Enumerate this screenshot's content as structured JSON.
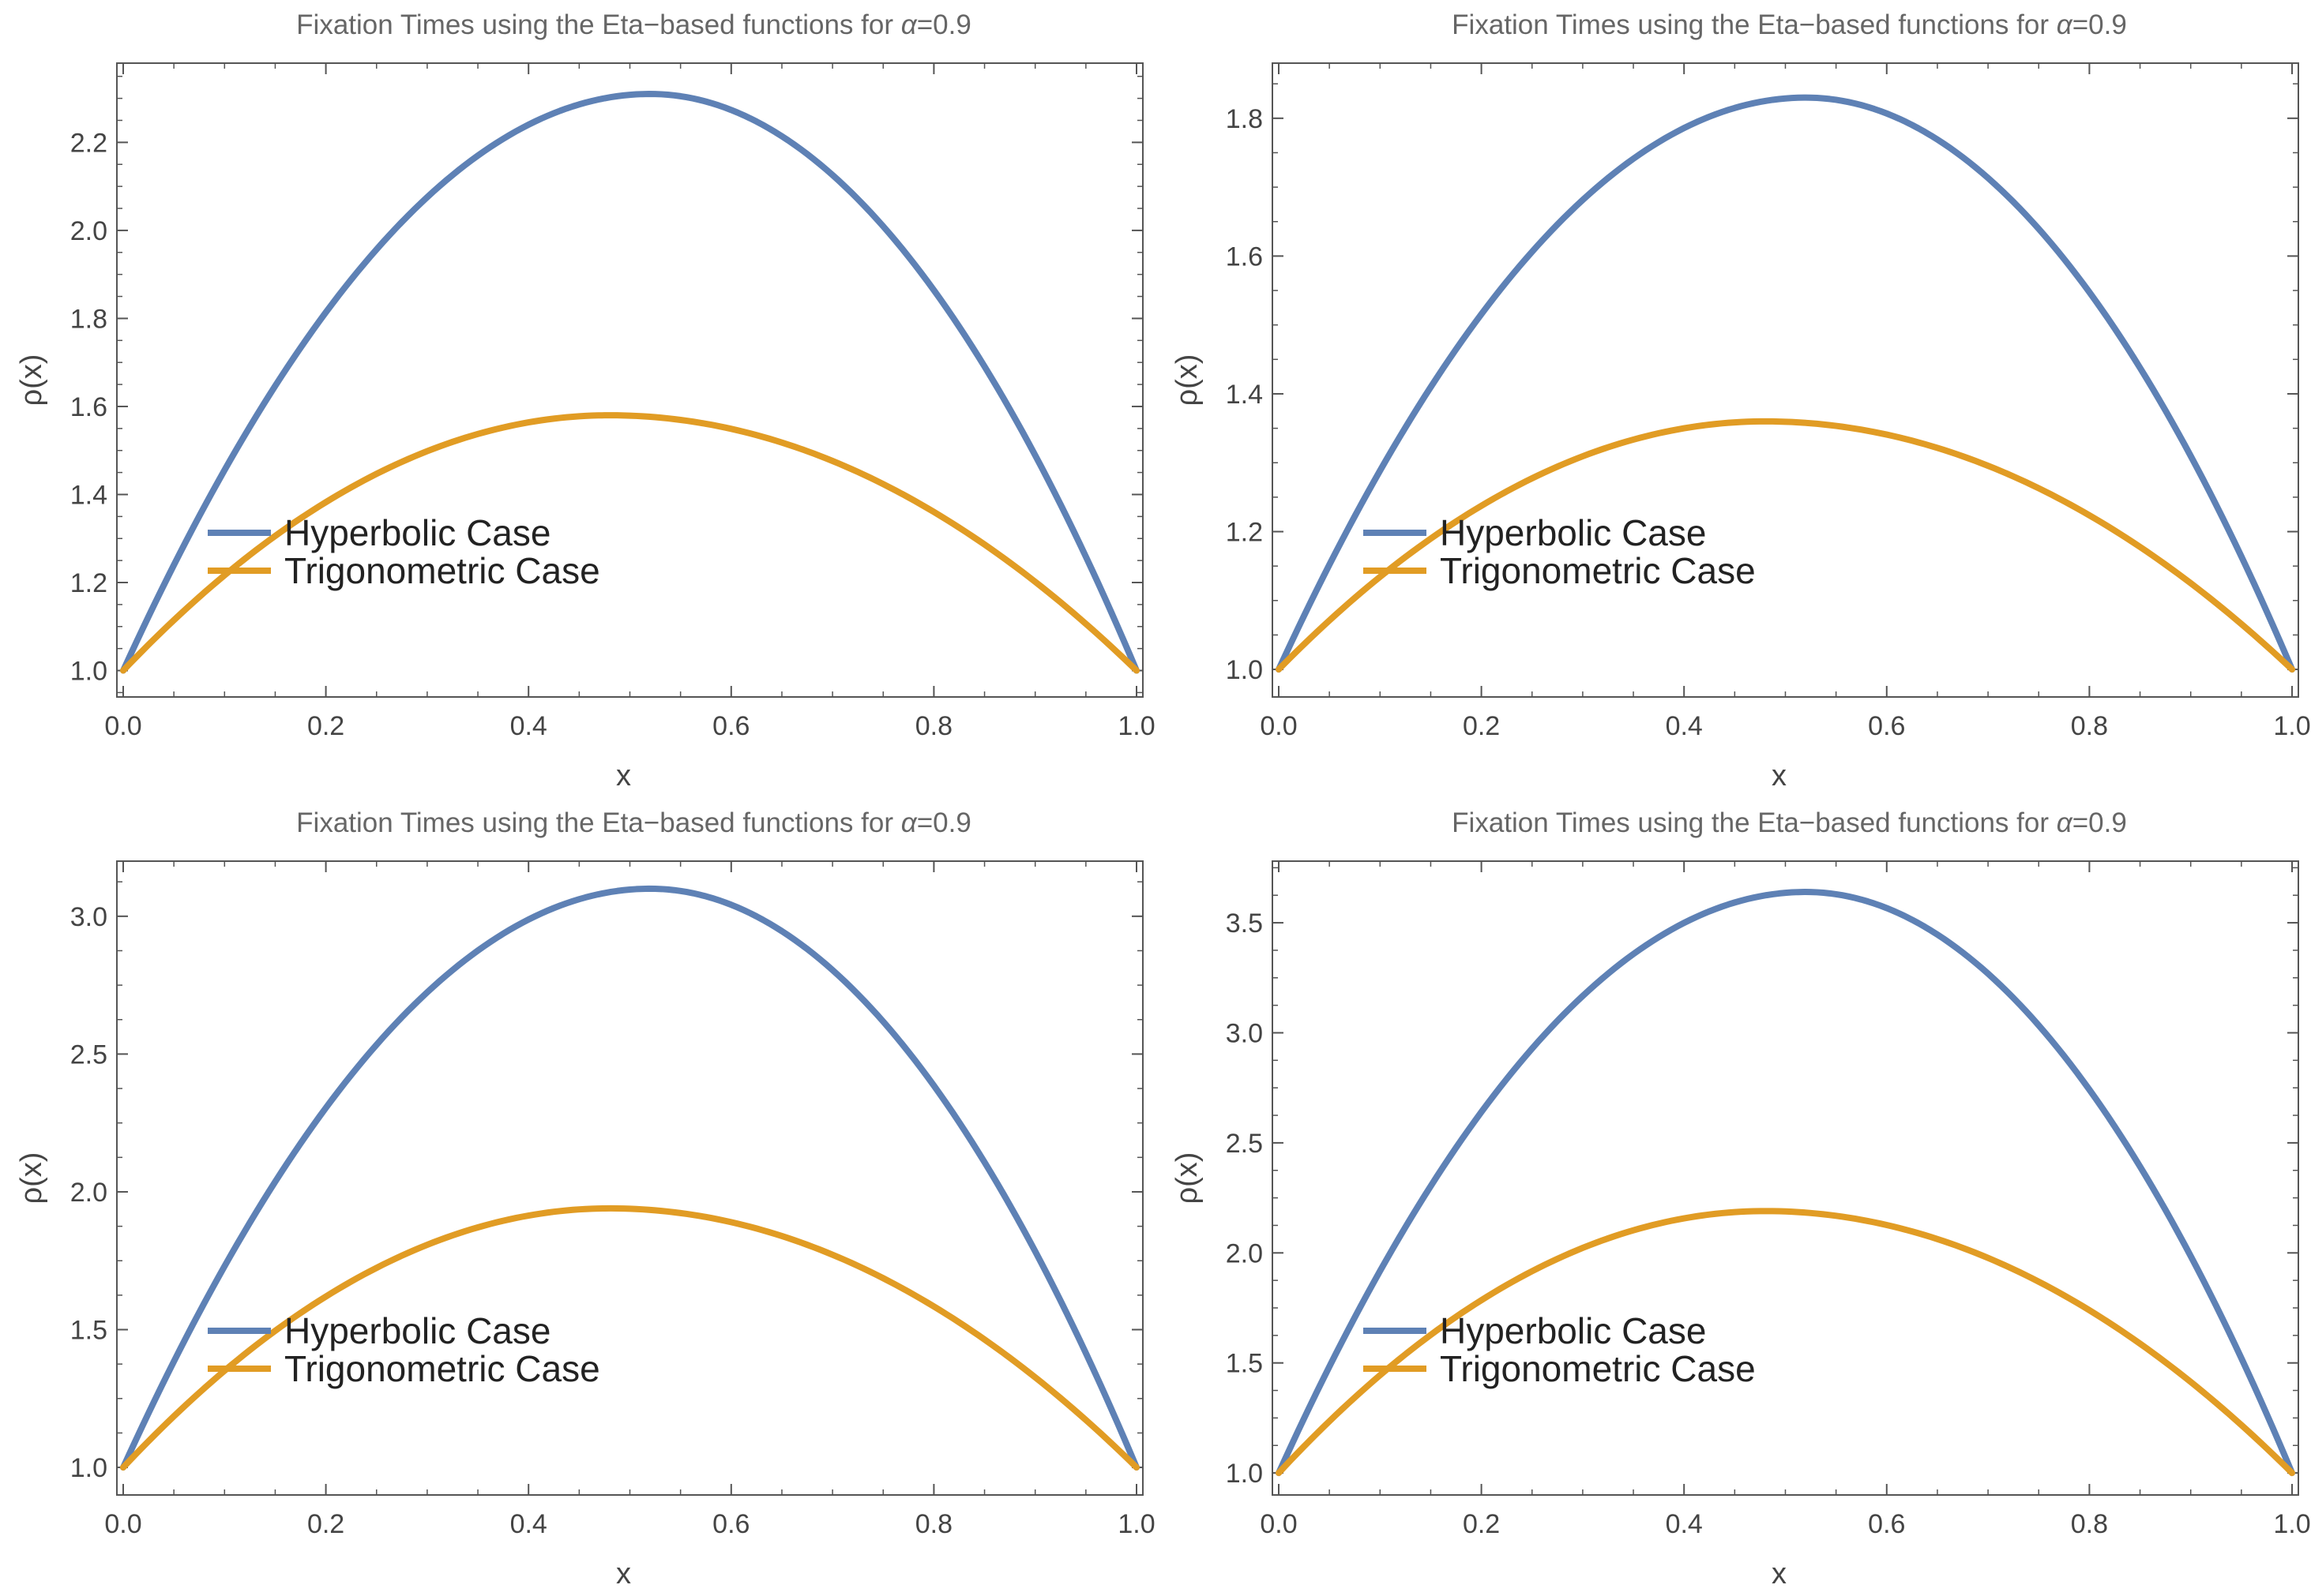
{
  "chart_data": [
    {
      "type": "line",
      "title": "Fixation Times using the  Eta−based functions for α=0.9",
      "title_main": "Fixation Times using the  Eta−based functions for ",
      "title_symbol": "α",
      "title_value": "=0.9",
      "xlabel": "x",
      "ylabel": "ρ(x)",
      "xlim": [
        0,
        1
      ],
      "ylim": [
        0.94,
        2.38
      ],
      "xticks": [
        0.0,
        0.2,
        0.4,
        0.6,
        0.8,
        1.0
      ],
      "xtick_labels": [
        "0.0",
        "0.2",
        "0.4",
        "0.6",
        "0.8",
        "1.0"
      ],
      "yticks": [
        1.0,
        1.2,
        1.4,
        1.6,
        1.8,
        2.0,
        2.2
      ],
      "ytick_labels": [
        "1.0",
        "1.2",
        "1.4",
        "1.6",
        "1.8",
        "2.0",
        "2.2"
      ],
      "legend_position": "lower-center",
      "series": [
        {
          "name": "Hyperbolic Case",
          "color": "#5e81b5",
          "peak_x": 0.52,
          "peak_y": 2.31,
          "end_values": [
            1.0,
            1.0
          ]
        },
        {
          "name": "Trigonometric Case",
          "color": "#e19c24",
          "peak_x": 0.48,
          "peak_y": 1.58,
          "end_values": [
            1.0,
            1.0
          ]
        }
      ]
    },
    {
      "type": "line",
      "title": "Fixation Times using the  Eta−based functions for α=0.9",
      "title_main": "Fixation Times using the  Eta−based functions for ",
      "title_symbol": "α",
      "title_value": "=0.9",
      "xlabel": "x",
      "ylabel": "ρ(x)",
      "xlim": [
        0,
        1
      ],
      "ylim": [
        0.96,
        1.88
      ],
      "xticks": [
        0.0,
        0.2,
        0.4,
        0.6,
        0.8,
        1.0
      ],
      "xtick_labels": [
        "0.0",
        "0.2",
        "0.4",
        "0.6",
        "0.8",
        "1.0"
      ],
      "yticks": [
        1.0,
        1.2,
        1.4,
        1.6,
        1.8
      ],
      "ytick_labels": [
        "1.0",
        "1.2",
        "1.4",
        "1.6",
        "1.8"
      ],
      "legend_position": "lower-center",
      "series": [
        {
          "name": "Hyperbolic Case",
          "color": "#5e81b5",
          "peak_x": 0.52,
          "peak_y": 1.83,
          "end_values": [
            1.0,
            1.0
          ]
        },
        {
          "name": "Trigonometric Case",
          "color": "#e19c24",
          "peak_x": 0.48,
          "peak_y": 1.36,
          "end_values": [
            1.0,
            1.0
          ]
        }
      ]
    },
    {
      "type": "line",
      "title": "Fixation Times using the  Eta−based functions for α=0.9",
      "title_main": "Fixation Times using the  Eta−based functions for ",
      "title_symbol": "α",
      "title_value": "=0.9",
      "xlabel": "x",
      "ylabel": "ρ(x)",
      "xlim": [
        0,
        1
      ],
      "ylim": [
        0.9,
        3.2
      ],
      "xticks": [
        0.0,
        0.2,
        0.4,
        0.6,
        0.8,
        1.0
      ],
      "xtick_labels": [
        "0.0",
        "0.2",
        "0.4",
        "0.6",
        "0.8",
        "1.0"
      ],
      "yticks": [
        1.0,
        1.5,
        2.0,
        2.5,
        3.0
      ],
      "ytick_labels": [
        "1.0",
        "1.5",
        "2.0",
        "2.5",
        "3.0"
      ],
      "legend_position": "lower-center",
      "series": [
        {
          "name": "Hyperbolic Case",
          "color": "#5e81b5",
          "peak_x": 0.52,
          "peak_y": 3.1,
          "end_values": [
            1.0,
            1.0
          ]
        },
        {
          "name": "Trigonometric Case",
          "color": "#e19c24",
          "peak_x": 0.48,
          "peak_y": 1.94,
          "end_values": [
            1.0,
            1.0
          ]
        }
      ]
    },
    {
      "type": "line",
      "title": "Fixation Times using the  Eta−based functions for α=0.9",
      "title_main": "Fixation Times using the  Eta−based functions for ",
      "title_symbol": "α",
      "title_value": "=0.9",
      "xlabel": "x",
      "ylabel": "ρ(x)",
      "xlim": [
        0,
        1
      ],
      "ylim": [
        0.9,
        3.78
      ],
      "xticks": [
        0.0,
        0.2,
        0.4,
        0.6,
        0.8,
        1.0
      ],
      "xtick_labels": [
        "0.0",
        "0.2",
        "0.4",
        "0.6",
        "0.8",
        "1.0"
      ],
      "yticks": [
        1.0,
        1.5,
        2.0,
        2.5,
        3.0,
        3.5
      ],
      "ytick_labels": [
        "1.0",
        "1.5",
        "2.0",
        "2.5",
        "3.0",
        "3.5"
      ],
      "legend_position": "lower-center",
      "series": [
        {
          "name": "Hyperbolic Case",
          "color": "#5e81b5",
          "peak_x": 0.52,
          "peak_y": 3.64,
          "end_values": [
            1.0,
            1.0
          ]
        },
        {
          "name": "Trigonometric Case",
          "color": "#e19c24",
          "peak_x": 0.48,
          "peak_y": 2.19,
          "end_values": [
            1.0,
            1.0
          ]
        }
      ]
    }
  ]
}
